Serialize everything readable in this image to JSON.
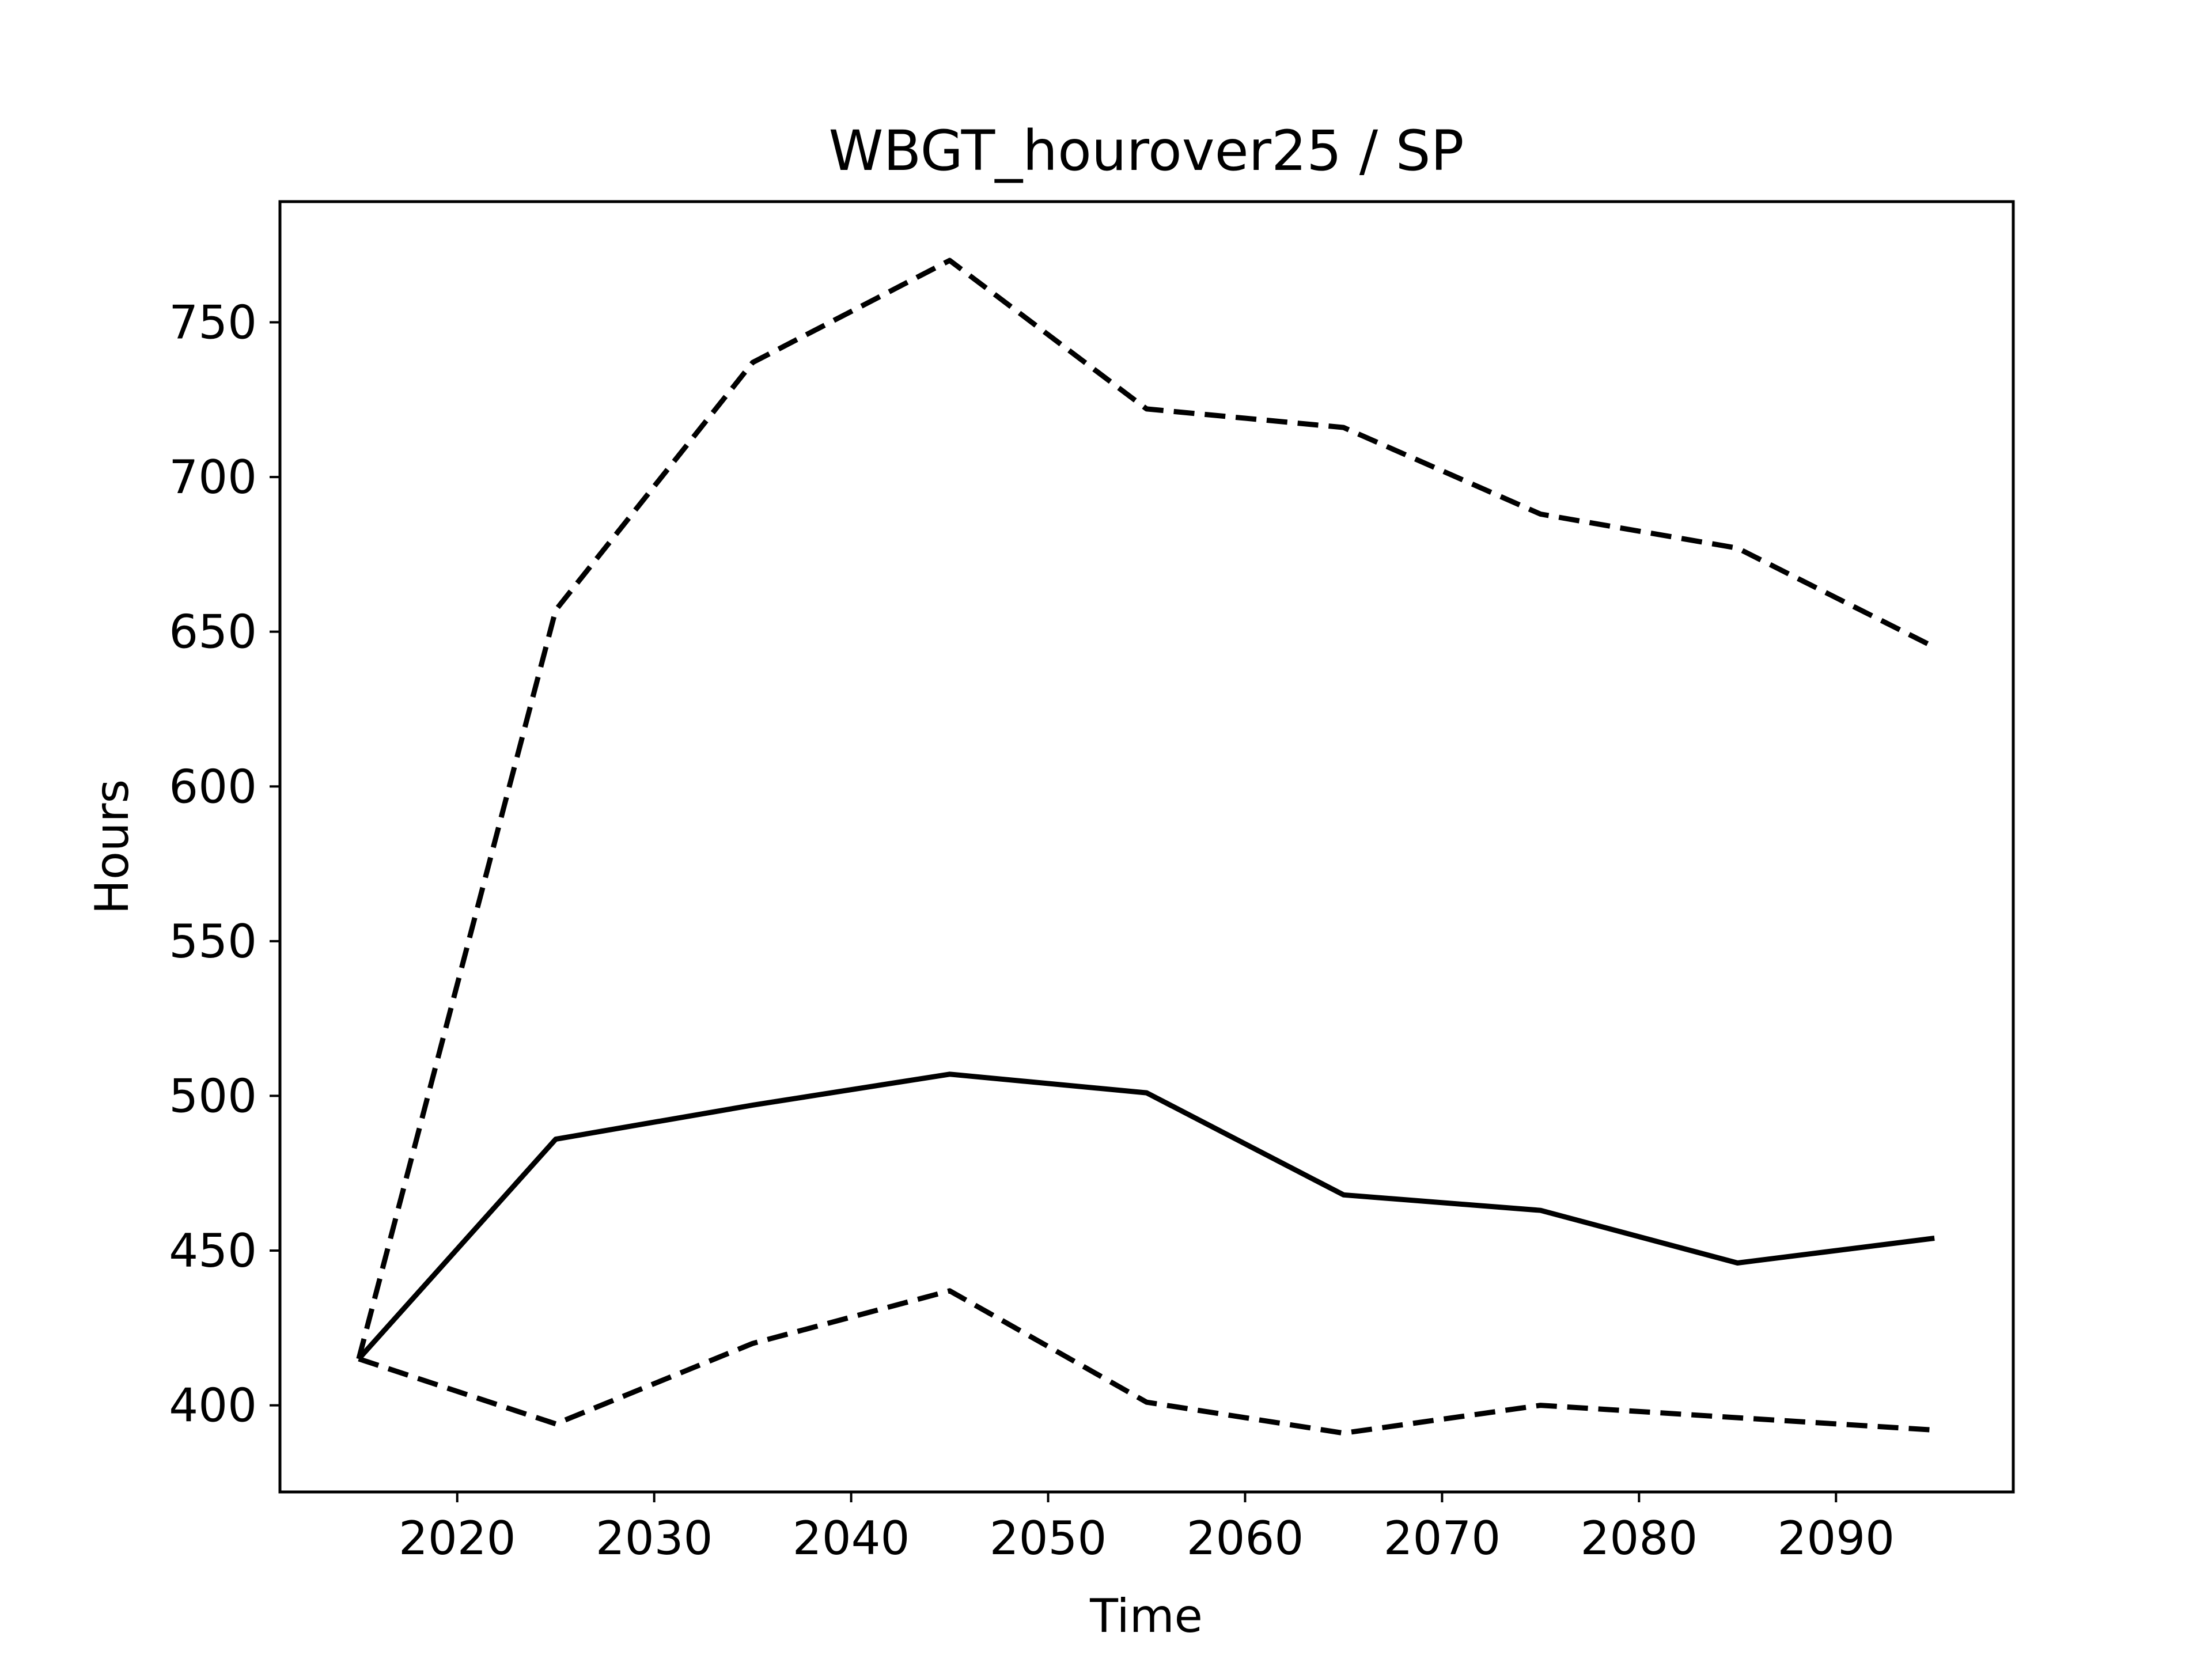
{
  "chart_data": {
    "type": "line",
    "title": "WBGT_hourover25 / SP",
    "xlabel": "Time",
    "ylabel": "Hours",
    "x": [
      2015,
      2025,
      2035,
      2045,
      2055,
      2065,
      2075,
      2085,
      2095
    ],
    "xlim": [
      2011,
      2099
    ],
    "ylim": [
      372,
      789
    ],
    "xticks": [
      2020,
      2030,
      2040,
      2050,
      2060,
      2070,
      2080,
      2090
    ],
    "yticks": [
      400,
      450,
      500,
      550,
      600,
      650,
      700,
      750
    ],
    "grid": false,
    "legend": "none",
    "series": [
      {
        "style": "dashed",
        "color": "#000000",
        "values": [
          415,
          657,
          737,
          770,
          722,
          716,
          688,
          677,
          645
        ]
      },
      {
        "style": "solid",
        "color": "#000000",
        "values": [
          415,
          486,
          497,
          507,
          501,
          468,
          463,
          446,
          454
        ]
      },
      {
        "style": "dashed",
        "color": "#000000",
        "values": [
          415,
          394,
          420,
          437,
          401,
          391,
          400,
          396,
          392
        ]
      }
    ]
  }
}
